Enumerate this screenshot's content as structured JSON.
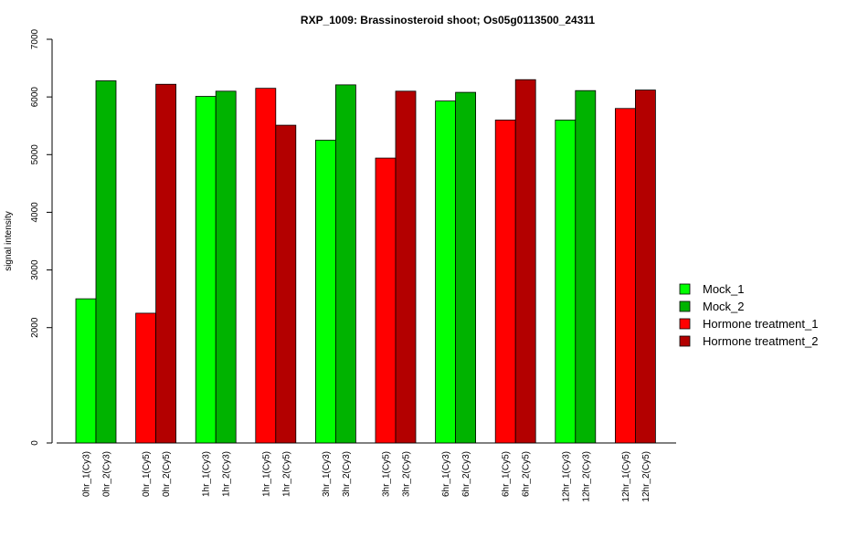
{
  "chart_data": {
    "type": "bar",
    "title": "RXP_1009: Brassinosteroid shoot; Os05g0113500_24311",
    "ylabel": "signal intensity",
    "xlabel": "",
    "ylim": [
      0,
      7000
    ],
    "y_ticks": [
      "0",
      "2000",
      "3000",
      "4000",
      "5000",
      "6000",
      "7000"
    ],
    "grid": false,
    "legend_position": "right",
    "legend": [
      {
        "name": "Mock_1",
        "color": "#00ff00"
      },
      {
        "name": "Mock_2",
        "color": "#00b300"
      },
      {
        "name": "Hormone treatment_1",
        "color": "#ff0000"
      },
      {
        "name": "Hormone treatment_2",
        "color": "#b30000"
      }
    ],
    "bars": [
      {
        "label": "0hr_1(Cy3)",
        "value": 2500,
        "series": 0
      },
      {
        "label": "0hr_2(Cy3)",
        "value": 6280,
        "series": 1
      },
      {
        "label": "0hr_1(Cy5)",
        "value": 2250,
        "series": 2
      },
      {
        "label": "0hr_2(Cy5)",
        "value": 6220,
        "series": 3
      },
      {
        "label": "1hr_1(Cy3)",
        "value": 6010,
        "series": 0
      },
      {
        "label": "1hr_2(Cy3)",
        "value": 6100,
        "series": 1
      },
      {
        "label": "1hr_1(Cy5)",
        "value": 6150,
        "series": 2
      },
      {
        "label": "1hr_2(Cy5)",
        "value": 5510,
        "series": 3
      },
      {
        "label": "3hr_1(Cy3)",
        "value": 5250,
        "series": 0
      },
      {
        "label": "3hr_2(Cy3)",
        "value": 6210,
        "series": 1
      },
      {
        "label": "3hr_1(Cy5)",
        "value": 4940,
        "series": 2
      },
      {
        "label": "3hr_2(Cy5)",
        "value": 6100,
        "series": 3
      },
      {
        "label": "6hr_1(Cy3)",
        "value": 5930,
        "series": 0
      },
      {
        "label": "6hr_2(Cy3)",
        "value": 6080,
        "series": 1
      },
      {
        "label": "6hr_1(Cy5)",
        "value": 5600,
        "series": 2
      },
      {
        "label": "6hr_2(Cy5)",
        "value": 6300,
        "series": 3
      },
      {
        "label": "12hr_1(Cy3)",
        "value": 5600,
        "series": 0
      },
      {
        "label": "12hr_2(Cy3)",
        "value": 6110,
        "series": 1
      },
      {
        "label": "12hr_1(Cy5)",
        "value": 5800,
        "series": 2
      },
      {
        "label": "12hr_2(Cy5)",
        "value": 6120,
        "series": 3
      }
    ]
  }
}
